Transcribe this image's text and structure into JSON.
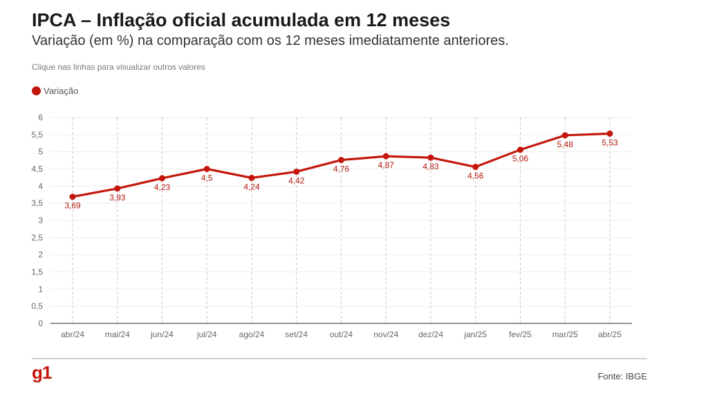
{
  "header": {
    "title": "IPCA – Inflação oficial acumulada em 12 meses",
    "subtitle": "Variação (em %) na comparação com os 12 meses imediatamente anteriores.",
    "hint": "Clique nas linhas para visualizar outros valores"
  },
  "legend": {
    "label": "Variação",
    "color": "#c4170c"
  },
  "footer": {
    "logo": "g1",
    "source": "Fonte: IBGE"
  },
  "chart_data": {
    "type": "line",
    "categories": [
      "abr/24",
      "mai/24",
      "jun/24",
      "jul/24",
      "ago/24",
      "set/24",
      "out/24",
      "nov/24",
      "dez/24",
      "jan/25",
      "fev/25",
      "mar/25",
      "abr/25"
    ],
    "series": [
      {
        "name": "Variação",
        "color": "#c4170c",
        "values": [
          3.69,
          3.93,
          4.23,
          4.5,
          4.24,
          4.42,
          4.76,
          4.87,
          4.83,
          4.56,
          5.06,
          5.48,
          5.53
        ],
        "labels": [
          "3,69",
          "3,93",
          "4,23",
          "4,5",
          "4,24",
          "4,42",
          "4,76",
          "4,87",
          "4,83",
          "4,56",
          "5,06",
          "5,48",
          "5,53"
        ]
      }
    ],
    "y_ticks": [
      0,
      0.5,
      1,
      1.5,
      2,
      2.5,
      3,
      3.5,
      4,
      4.5,
      5,
      5.5,
      6
    ],
    "y_tick_labels": [
      "0",
      "0,5",
      "1",
      "1,5",
      "2",
      "2,5",
      "3",
      "3,5",
      "4",
      "4,5",
      "5",
      "5,5",
      "6"
    ],
    "ylim": [
      0,
      6
    ],
    "grid": true,
    "legend_position": "top-left"
  }
}
